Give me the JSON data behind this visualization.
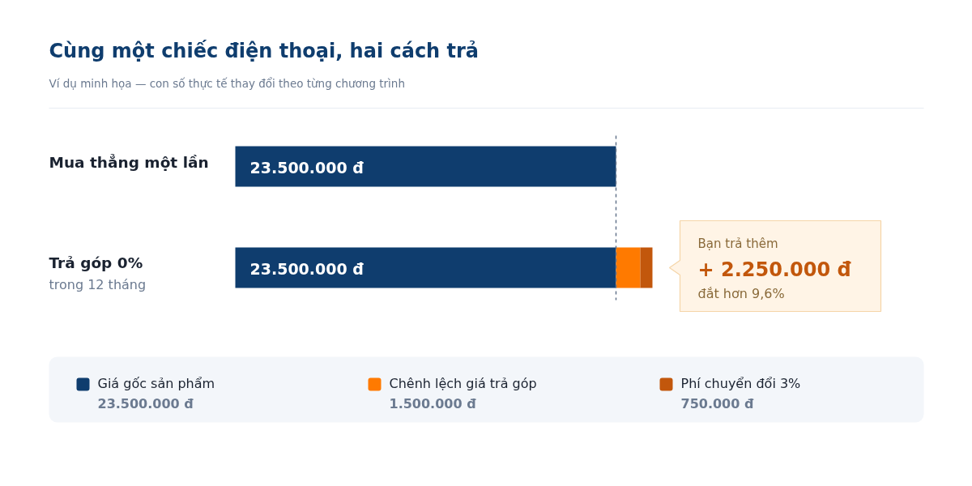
{
  "chart_data": {
    "type": "bar",
    "orientation": "horizontal",
    "stacked": true,
    "title": "Cùng một chiếc điện thoại, hai cách trả",
    "subtitle": "Ví dụ minh họa — con số thực tế thay đổi theo từng chương trình",
    "categories": [
      "Mua thẳng một lần",
      "Trả góp 0%"
    ],
    "series": [
      {
        "name": "Giá gốc sản phẩm",
        "color": "#0f3d6e",
        "values": [
          23500000,
          23500000
        ],
        "value_labels": [
          "23.500.000 đ",
          "23.500.000 đ"
        ]
      },
      {
        "name": "Chênh lệch giá trả góp",
        "color": "#ff7a00",
        "values": [
          null,
          1500000
        ]
      },
      {
        "name": "Phí chuyển đổi 3%",
        "color": "#c2570c",
        "values": [
          null,
          750000
        ]
      }
    ],
    "annotations": [
      "trong 12 tháng",
      "Bạn trả thêm",
      "+ 2.250.000 đ",
      "đắt hơn 9,6%",
      "23.500.000 đ",
      "1.500.000 đ",
      "750.000 đ"
    ],
    "ref_lines": [
      {
        "axis": "x",
        "value": 23500000,
        "color": "#64748b",
        "line_style": "dashed"
      }
    ],
    "legend": "bottom"
  }
}
